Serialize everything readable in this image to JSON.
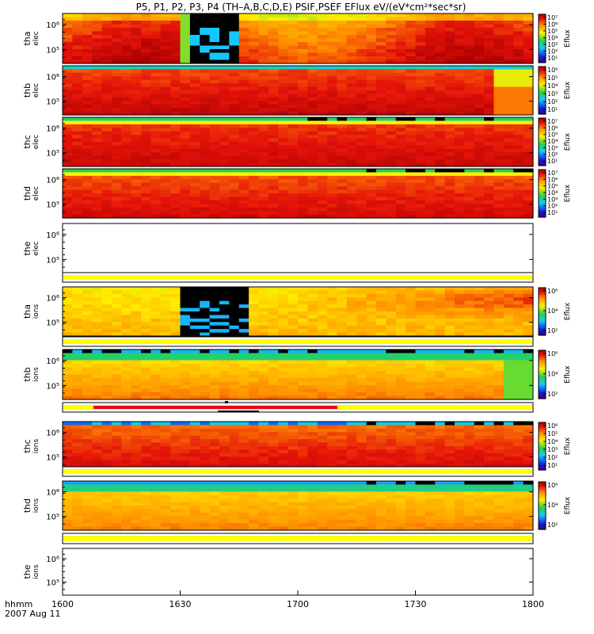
{
  "title": "P5, P1, P2, P3, P4 (TH–A,B,C,D,E) PSIF,PSEF EFlux eV/(eV*cm²*sec*sr)",
  "footer": {
    "time_label": "hhmm",
    "date_label": "2007 Aug 11"
  },
  "chart_data": {
    "type": "heatmap",
    "x_ticks": [
      "1600",
      "1630",
      "1700",
      "1730",
      "1800"
    ],
    "panels": [
      {
        "id": "tha_elec",
        "probe": "tha",
        "species": "elec",
        "empty": false,
        "y_ticks": [
          "10⁶",
          "10⁵"
        ],
        "colorbar": {
          "label": "Eflux",
          "ticks": [
            "10⁷",
            "10⁶",
            "10⁵",
            "10⁴",
            "10³",
            "10²",
            "10¹"
          ]
        },
        "dominant_colors": [
          "#e8120a",
          "#f86a0a",
          "#ffd000",
          "#000000",
          "#1e78ff"
        ]
      },
      {
        "id": "thb_elec",
        "probe": "thb",
        "species": "elec",
        "empty": false,
        "y_ticks": [
          "10⁶",
          "10⁵"
        ],
        "colorbar": {
          "label": "Eflux",
          "ticks": [
            "10⁶",
            "10⁵",
            "10⁴",
            "10³",
            "10²",
            "10¹"
          ]
        },
        "dominant_colors": [
          "#c80000",
          "#e8200a",
          "#ffb000",
          "#1ecfff"
        ]
      },
      {
        "id": "thc_elec",
        "probe": "thc",
        "species": "elec",
        "empty": false,
        "y_ticks": [
          "10⁶",
          "10⁵"
        ],
        "colorbar": {
          "label": "Eflux",
          "ticks": [
            "10⁷",
            "10⁶",
            "10⁵",
            "10⁴",
            "10³",
            "10²",
            "10¹"
          ]
        },
        "dominant_colors": [
          "#e8120a",
          "#ffd000",
          "#2ecf40",
          "#000000"
        ]
      },
      {
        "id": "thd_elec",
        "probe": "thd",
        "species": "elec",
        "empty": false,
        "y_ticks": [
          "10⁶",
          "10⁵"
        ],
        "colorbar": {
          "label": "Eflux",
          "ticks": [
            "10⁷",
            "10⁶",
            "10⁵",
            "10⁴",
            "10³",
            "10²",
            "10¹"
          ]
        },
        "dominant_colors": [
          "#e8120a",
          "#ff9000",
          "#2ecf40",
          "#000000"
        ]
      },
      {
        "id": "the_elec",
        "probe": "the",
        "species": "elec",
        "empty": true,
        "y_ticks": [
          "10⁶",
          "10⁵"
        ],
        "colorbar": null
      },
      {
        "id": "tha_ions",
        "probe": "tha",
        "species": "ions",
        "empty": false,
        "y_ticks": [
          "10⁶",
          "10⁵"
        ],
        "colorbar": {
          "label": "Eflux",
          "ticks": [
            "10⁶",
            "10⁴",
            "10²"
          ]
        },
        "dominant_colors": [
          "#ffd000",
          "#ff8000",
          "#e8120a",
          "#000000",
          "#1e78ff"
        ]
      },
      {
        "id": "thb_ions",
        "probe": "thb",
        "species": "ions",
        "empty": false,
        "y_ticks": [
          "10⁶",
          "10⁵"
        ],
        "colorbar": {
          "label": "Eflux",
          "ticks": [
            "10⁶",
            "10⁴",
            "10²"
          ]
        },
        "dominant_colors": [
          "#ffd000",
          "#ff8000",
          "#1ecfff",
          "#000000"
        ]
      },
      {
        "id": "thc_ions",
        "probe": "thc",
        "species": "ions",
        "empty": false,
        "y_ticks": [
          "10⁶",
          "10⁵"
        ],
        "colorbar": {
          "label": "Eflux",
          "ticks": [
            "10⁶",
            "10⁵",
            "10⁴",
            "10³",
            "10²",
            "10¹"
          ]
        },
        "dominant_colors": [
          "#e8120a",
          "#ff8000",
          "#ffd000",
          "#1ecfff",
          "#000000"
        ]
      },
      {
        "id": "thd_ions",
        "probe": "thd",
        "species": "ions",
        "empty": false,
        "y_ticks": [
          "10⁶",
          "10⁵"
        ],
        "colorbar": {
          "label": "Eflux",
          "ticks": [
            "10⁶",
            "10⁴",
            "10²"
          ]
        },
        "dominant_colors": [
          "#ffd000",
          "#ff9000",
          "#1ecfff",
          "#1e40ff",
          "#000000"
        ]
      },
      {
        "id": "the_ions",
        "probe": "the",
        "species": "ions",
        "empty": true,
        "y_ticks": [
          "10⁶",
          "10⁵"
        ],
        "colorbar": null
      }
    ],
    "mode_bars": {
      "colors": {
        "fast_survey": "#ffff00",
        "slow_survey": "#e8001e",
        "burst": "#000000"
      }
    }
  }
}
